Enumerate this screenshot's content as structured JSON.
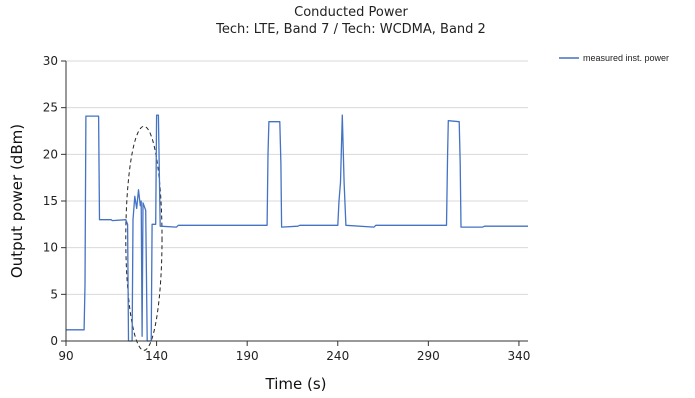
{
  "chart_data": {
    "type": "line",
    "title": "Conducted Power",
    "subtitle": "Tech: LTE, Band 7 / Tech: WCDMA, Band 2",
    "xlabel": "Time (s)",
    "ylabel": "Output power (dBm)",
    "xlim": [
      90,
      345
    ],
    "ylim": [
      0,
      30
    ],
    "x_ticks": [
      90,
      140,
      190,
      240,
      290,
      340
    ],
    "y_ticks": [
      0,
      5,
      10,
      15,
      20,
      25,
      30
    ],
    "grid": "horizontal",
    "legend_position": "top-right",
    "series": [
      {
        "name": "measured inst. power",
        "color": "#4472c4",
        "points": [
          [
            90,
            1.2
          ],
          [
            100,
            1.2
          ],
          [
            100.5,
            6
          ],
          [
            101,
            24.1
          ],
          [
            108,
            24.1
          ],
          [
            108.5,
            13
          ],
          [
            115,
            13
          ],
          [
            115.5,
            12.9
          ],
          [
            123,
            13
          ],
          [
            124,
            12.5
          ],
          [
            124.5,
            0
          ],
          [
            126.5,
            0
          ],
          [
            127,
            13
          ],
          [
            128,
            15.5
          ],
          [
            129,
            14.2
          ],
          [
            130,
            16.2
          ],
          [
            131,
            14.5
          ],
          [
            131.5,
            15
          ],
          [
            132,
            0.5
          ],
          [
            132.5,
            14.8
          ],
          [
            134,
            14
          ],
          [
            134.8,
            0
          ],
          [
            137,
            0
          ],
          [
            137.5,
            12.5
          ],
          [
            139.5,
            12.5
          ],
          [
            140,
            24.2
          ],
          [
            141,
            24.2
          ],
          [
            142,
            12.3
          ],
          [
            151,
            12.2
          ],
          [
            152,
            12.4
          ],
          [
            201,
            12.4
          ],
          [
            201.5,
            20
          ],
          [
            202,
            23.5
          ],
          [
            208,
            23.5
          ],
          [
            208.6,
            19
          ],
          [
            209,
            12.2
          ],
          [
            218,
            12.3
          ],
          [
            219,
            12.4
          ],
          [
            240,
            12.4
          ],
          [
            240.7,
            15
          ],
          [
            241.5,
            17
          ],
          [
            242.5,
            24.2
          ],
          [
            243.5,
            17
          ],
          [
            244.5,
            12.4
          ],
          [
            260,
            12.2
          ],
          [
            261,
            12.4
          ],
          [
            300,
            12.4
          ],
          [
            300.6,
            20
          ],
          [
            301,
            23.6
          ],
          [
            307,
            23.5
          ],
          [
            307.6,
            19
          ],
          [
            308,
            12.2
          ],
          [
            320,
            12.2
          ],
          [
            321,
            12.3
          ],
          [
            345,
            12.3
          ]
        ]
      }
    ],
    "annotations": [
      {
        "type": "dashed-ellipse",
        "center": [
          133,
          11
        ],
        "radius_x": 10,
        "radius_y": 12
      }
    ]
  }
}
